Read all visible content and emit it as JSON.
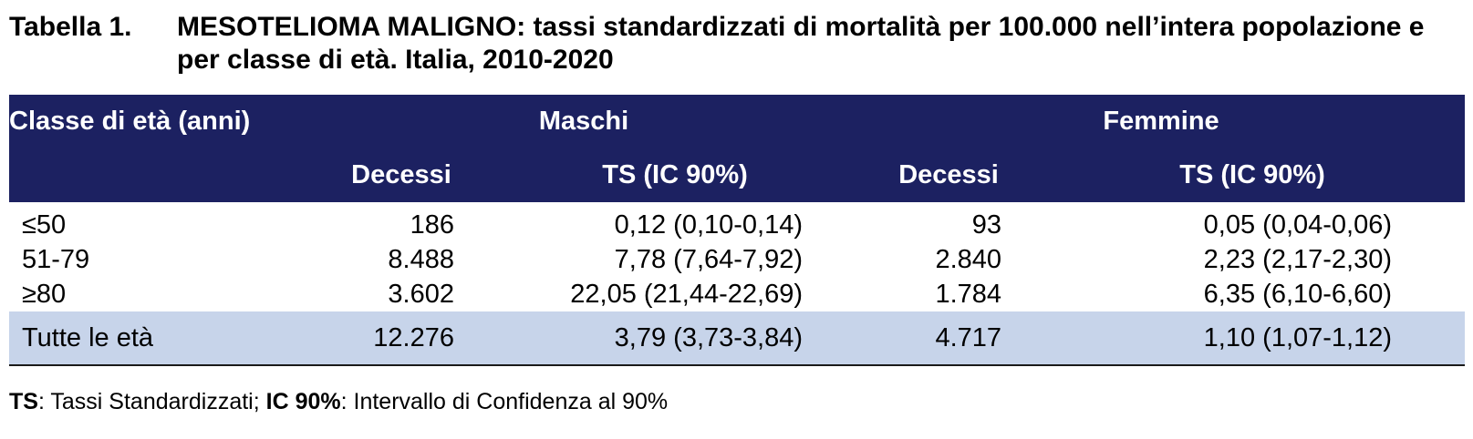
{
  "title": {
    "prefix": "Tabella 1.",
    "text": "MESOTELIOMA MALIGNO: tassi standardizzati di mortalità per 100.000 nell’intera popolazione e per classe di età. Italia, 2010-2020"
  },
  "table": {
    "header": {
      "age_label": "Classe di età (anni)",
      "group_male": "Maschi",
      "group_female": "Femmine",
      "sub_deaths": "Decessi",
      "sub_ts": "TS (IC 90%)"
    },
    "rows": [
      {
        "age": "≤50",
        "m_deaths": "186",
        "m_ts": "0,12 (0,10-0,14)",
        "f_deaths": "93",
        "f_ts": "0,05 (0,04-0,06)"
      },
      {
        "age": "51-79",
        "m_deaths": "8.488",
        "m_ts": "7,78 (7,64-7,92)",
        "f_deaths": "2.840",
        "f_ts": "2,23 (2,17-2,30)"
      },
      {
        "age": "≥80",
        "m_deaths": "3.602",
        "m_ts": "22,05 (21,44-22,69)",
        "f_deaths": "1.784",
        "f_ts": "6,35 (6,10-6,60)"
      }
    ],
    "total": {
      "age": "Tutte le età",
      "m_deaths": "12.276",
      "m_ts": "3,79 (3,73-3,84)",
      "f_deaths": "4.717",
      "f_ts": "1,10 (1,07-1,12)"
    }
  },
  "footnote": {
    "ts_abbr": "TS",
    "ts_text": ": Tassi Standardizzati; ",
    "ic_abbr": "IC 90%",
    "ic_text": ": Intervallo di Confidenza al 90%"
  },
  "colors": {
    "header_bg": "#1c2161",
    "total_bg": "#c7d4ea"
  }
}
